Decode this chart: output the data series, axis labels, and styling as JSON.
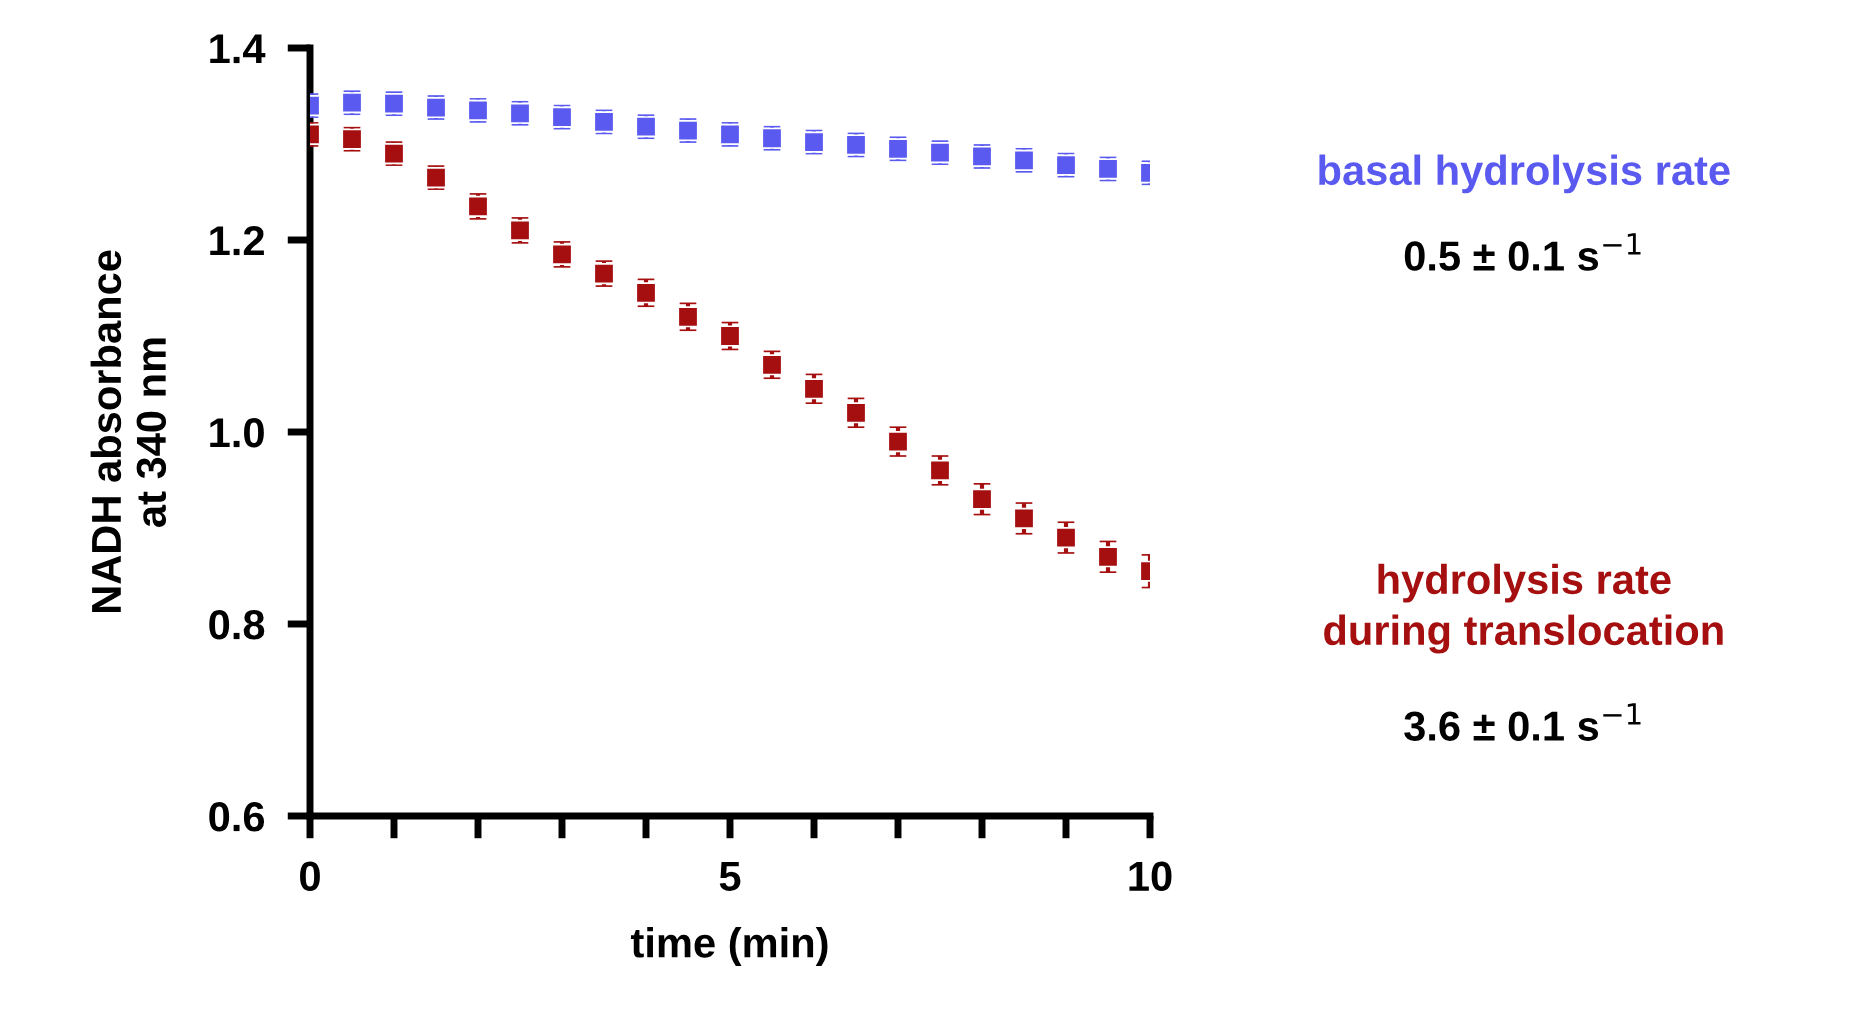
{
  "chart_data": {
    "type": "scatter",
    "xlabel": "time (min)",
    "ylabel": "NADH absorbance\nat 340 nm",
    "xlim": [
      0,
      10
    ],
    "ylim": [
      0.6,
      1.4
    ],
    "xticks": [
      0,
      {
        "value": 1,
        "label": null
      },
      {
        "value": 2,
        "label": null
      },
      {
        "value": 3,
        "label": null
      },
      {
        "value": 4,
        "label": null
      },
      5,
      {
        "value": 6,
        "label": null
      },
      {
        "value": 7,
        "label": null
      },
      {
        "value": 8,
        "label": null
      },
      {
        "value": 9,
        "label": null
      },
      10
    ],
    "yticks": [
      {
        "value": 0.6,
        "label": "0.6"
      },
      {
        "value": 0.8,
        "label": "0.8"
      },
      {
        "value": 1.0,
        "label": "1.0"
      },
      {
        "value": 1.2,
        "label": "1.2"
      },
      {
        "value": 1.4,
        "label": "1.4"
      }
    ],
    "x": [
      0,
      0.5,
      1,
      1.5,
      2,
      2.5,
      3,
      3.5,
      4,
      4.5,
      5,
      5.5,
      6,
      6.5,
      7,
      7.5,
      8,
      8.5,
      9,
      9.5,
      10
    ],
    "marker": "square",
    "legend": false,
    "grid": false,
    "series": [
      {
        "name": "basal hydrolysis rate",
        "color": "#5a5af0",
        "values": [
          1.34,
          1.343,
          1.342,
          1.338,
          1.335,
          1.332,
          1.328,
          1.323,
          1.318,
          1.314,
          1.31,
          1.306,
          1.302,
          1.299,
          1.295,
          1.291,
          1.287,
          1.283,
          1.278,
          1.274,
          1.27
        ],
        "errors": [
          0.012,
          0.012,
          0.012,
          0.012,
          0.012,
          0.012,
          0.012,
          0.012,
          0.012,
          0.012,
          0.012,
          0.012,
          0.012,
          0.012,
          0.012,
          0.012,
          0.012,
          0.012,
          0.012,
          0.012,
          0.012
        ]
      },
      {
        "name": "hydrolysis rate\nduring translocation",
        "color": "#a50f0f",
        "values": [
          1.31,
          1.305,
          1.29,
          1.265,
          1.235,
          1.21,
          1.185,
          1.165,
          1.145,
          1.12,
          1.1,
          1.07,
          1.045,
          1.02,
          0.99,
          0.96,
          0.93,
          0.91,
          0.89,
          0.87,
          0.855
        ],
        "errors": [
          0.012,
          0.012,
          0.012,
          0.012,
          0.013,
          0.013,
          0.013,
          0.013,
          0.014,
          0.014,
          0.014,
          0.014,
          0.015,
          0.015,
          0.015,
          0.015,
          0.016,
          0.016,
          0.016,
          0.016,
          0.017
        ]
      }
    ],
    "annotations": [
      "0.5 ± 0.1 s$^{−1}$",
      "3.6 ± 0.1 s$^{−1}$"
    ]
  }
}
